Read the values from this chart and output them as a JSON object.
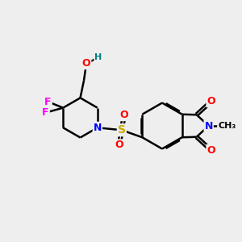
{
  "background_color": "#eeeeee",
  "bond_color": "#000000",
  "atom_colors": {
    "O": "#ff0000",
    "N": "#0000ff",
    "S": "#ccaa00",
    "F": "#ff00ff",
    "H": "#008080",
    "C": "#000000"
  },
  "lw": 1.8,
  "fontsize": 9
}
